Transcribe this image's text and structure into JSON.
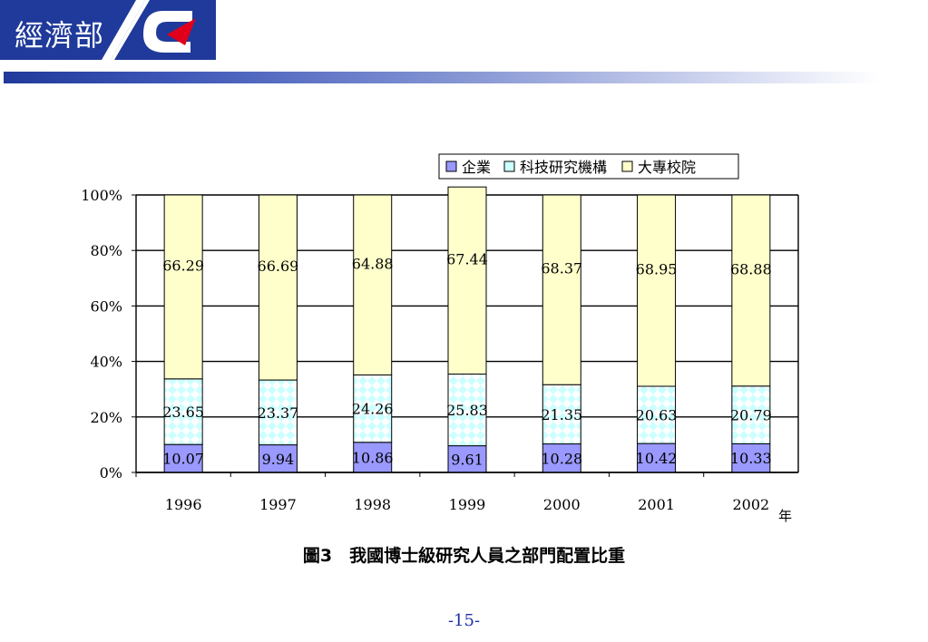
{
  "header": {
    "title": "經濟部"
  },
  "colors": {
    "header_blue": "#1f3a9a",
    "logo_red": "#e0001b",
    "enterprise": "#9999ff",
    "research": "#ccffff",
    "university": "#ffffcc"
  },
  "chart_data": {
    "type": "bar",
    "stacked": true,
    "percent": true,
    "categories": [
      "1996",
      "1997",
      "1998",
      "1999",
      "2000",
      "2001",
      "2002"
    ],
    "series": [
      {
        "name": "企業",
        "values": [
          10.07,
          9.94,
          10.86,
          9.61,
          10.28,
          10.42,
          10.33
        ]
      },
      {
        "name": "科技研究機構",
        "values": [
          23.65,
          23.37,
          24.26,
          25.83,
          21.35,
          20.63,
          20.79
        ]
      },
      {
        "name": "大專校院",
        "values": [
          66.29,
          66.69,
          64.88,
          67.44,
          68.37,
          68.95,
          68.88
        ]
      }
    ],
    "data_labels": [
      [
        "10.07",
        "9.94",
        "10.86",
        "9.61",
        "10.28",
        "10.42",
        "10.33"
      ],
      [
        "23.65",
        "23.37",
        "24.26",
        "25.83",
        "21.35",
        "20.63",
        "20.79"
      ],
      [
        "66.29",
        "66.69",
        "64.88",
        "67.44",
        "68.37",
        "68.95",
        "68.88"
      ]
    ],
    "yticks": [
      "0%",
      "20%",
      "40%",
      "60%",
      "80%",
      "100%"
    ],
    "ylim": [
      0,
      100
    ],
    "xlabel": "年",
    "ylabel": "",
    "grid": true,
    "legend": "top-right"
  },
  "caption": "圖3　我國博士級研究人員之部門配置比重",
  "page_number": "-15-"
}
